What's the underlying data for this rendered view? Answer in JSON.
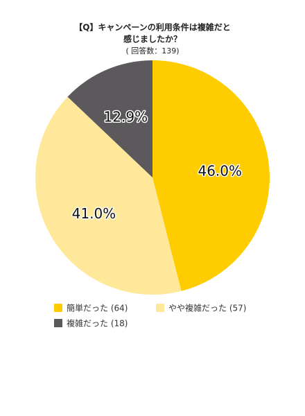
{
  "chart_data": {
    "type": "pie",
    "title": [
      "【Q】キャンペーンの利用条件は複雑だと",
      "感じましたか？"
    ],
    "subtitle": "( 回答数：139)",
    "categories": [
      "簡単だった (64)",
      "やや複雑だった (57)",
      "複雑だった (18)"
    ],
    "values": [
      46.0,
      41.0,
      12.9
    ],
    "value_labels": [
      "46.0%",
      "41.0%",
      "12.9%"
    ],
    "colors": [
      "#ffcc00",
      "#ffe89a",
      "#5b595b"
    ]
  }
}
